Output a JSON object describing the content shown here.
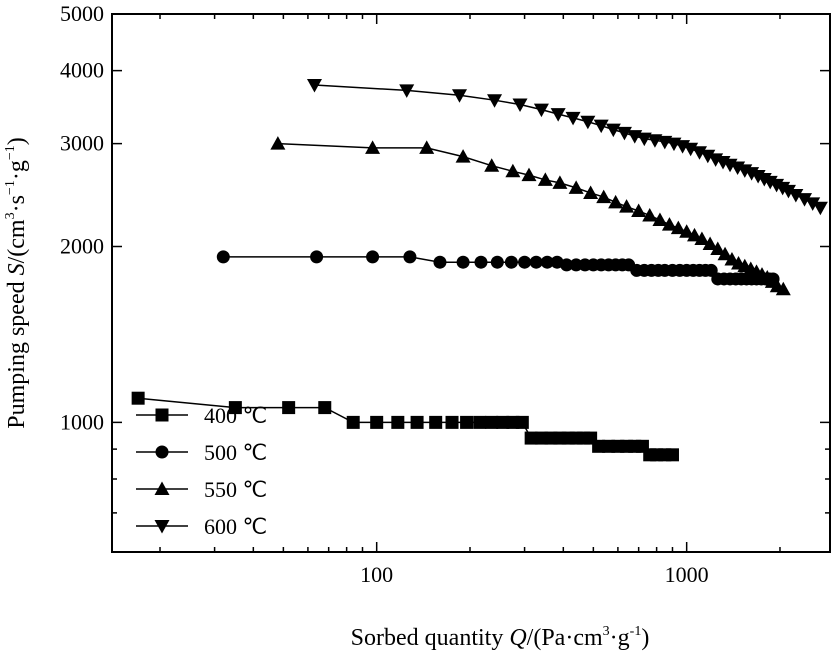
{
  "chart_data": {
    "type": "line",
    "xscale": "log",
    "yscale": "log",
    "xlim": [
      14,
      2900
    ],
    "ylim": [
      600,
      5000
    ],
    "xticks": [
      100,
      1000
    ],
    "yticks": [
      1000,
      2000,
      3000,
      4000,
      5000
    ],
    "xtick_labels": [
      "100",
      "1000"
    ],
    "ytick_labels": [
      "1000",
      "2000",
      "3000",
      "4000",
      "5000"
    ],
    "xlabel": {
      "pre": "Sorbed quantity ",
      "var": "Q",
      "post": "/(Pa·cm",
      "sup": "3",
      "post2": "·g",
      "sup2": "-1",
      "post3": ")"
    },
    "ylabel": {
      "pre": "Pumping speed ",
      "var": "S",
      "post": "/(cm",
      "sup": "3",
      "post2": "·s",
      "sup2": "−1",
      "post3": "·g",
      "sup3": "−1",
      "post4": ")"
    },
    "legend_position": "bottom-left",
    "series": [
      {
        "name": "400 ℃",
        "marker": "square",
        "x": [
          17,
          35,
          52,
          68,
          84,
          100,
          117,
          135,
          155,
          175,
          195,
          215,
          235,
          255,
          275,
          295,
          315,
          340,
          365,
          390,
          415,
          440,
          465,
          490,
          520,
          560,
          600,
          640,
          680,
          720,
          760,
          800,
          850,
          900
        ],
        "y": [
          1100,
          1060,
          1060,
          1060,
          1000,
          1000,
          1000,
          1000,
          1000,
          1000,
          1000,
          1000,
          1000,
          1000,
          1000,
          1000,
          940,
          940,
          940,
          940,
          940,
          940,
          940,
          940,
          910,
          910,
          910,
          910,
          910,
          910,
          880,
          880,
          880,
          880
        ]
      },
      {
        "name": "500 ℃",
        "marker": "circle",
        "x": [
          32,
          64,
          97,
          128,
          160,
          190,
          217,
          245,
          272,
          300,
          327,
          355,
          382,
          410,
          440,
          470,
          500,
          530,
          560,
          590,
          620,
          650,
          690,
          730,
          770,
          810,
          850,
          900,
          950,
          1000,
          1050,
          1100,
          1150,
          1200,
          1260,
          1320,
          1380,
          1440,
          1500,
          1560,
          1620,
          1680,
          1740,
          1800,
          1850,
          1900
        ],
        "y": [
          1920,
          1920,
          1920,
          1920,
          1880,
          1880,
          1880,
          1880,
          1880,
          1880,
          1880,
          1880,
          1880,
          1860,
          1860,
          1860,
          1860,
          1860,
          1860,
          1860,
          1860,
          1860,
          1820,
          1820,
          1820,
          1820,
          1820,
          1820,
          1820,
          1820,
          1820,
          1820,
          1820,
          1820,
          1760,
          1760,
          1760,
          1760,
          1760,
          1760,
          1760,
          1760,
          1760,
          1760,
          1760,
          1760
        ]
      },
      {
        "name": "550 ℃",
        "marker": "triangle-up",
        "x": [
          48,
          97,
          145,
          190,
          235,
          275,
          310,
          350,
          390,
          440,
          490,
          540,
          590,
          640,
          700,
          760,
          820,
          880,
          940,
          1000,
          1060,
          1120,
          1190,
          1260,
          1330,
          1400,
          1470,
          1540,
          1610,
          1680,
          1750,
          1820,
          1890,
          1960,
          2050
        ],
        "y": [
          3000,
          2950,
          2950,
          2850,
          2750,
          2690,
          2650,
          2600,
          2570,
          2520,
          2470,
          2430,
          2380,
          2340,
          2300,
          2260,
          2220,
          2180,
          2150,
          2120,
          2090,
          2060,
          2020,
          1980,
          1940,
          1900,
          1870,
          1850,
          1830,
          1810,
          1790,
          1770,
          1740,
          1710,
          1690
        ]
      },
      {
        "name": "600 ℃",
        "marker": "triangle-down",
        "x": [
          63,
          125,
          185,
          240,
          290,
          340,
          385,
          430,
          480,
          530,
          580,
          630,
          680,
          730,
          790,
          850,
          910,
          970,
          1030,
          1100,
          1170,
          1240,
          1310,
          1380,
          1460,
          1540,
          1620,
          1700,
          1780,
          1860,
          1950,
          2040,
          2130,
          2250,
          2400,
          2550,
          2700
        ],
        "y": [
          3780,
          3700,
          3630,
          3560,
          3500,
          3430,
          3370,
          3320,
          3270,
          3220,
          3170,
          3130,
          3090,
          3060,
          3040,
          3020,
          3000,
          2970,
          2940,
          2900,
          2860,
          2820,
          2790,
          2760,
          2730,
          2700,
          2670,
          2640,
          2610,
          2580,
          2550,
          2520,
          2490,
          2450,
          2410,
          2370,
          2330
        ]
      }
    ]
  }
}
